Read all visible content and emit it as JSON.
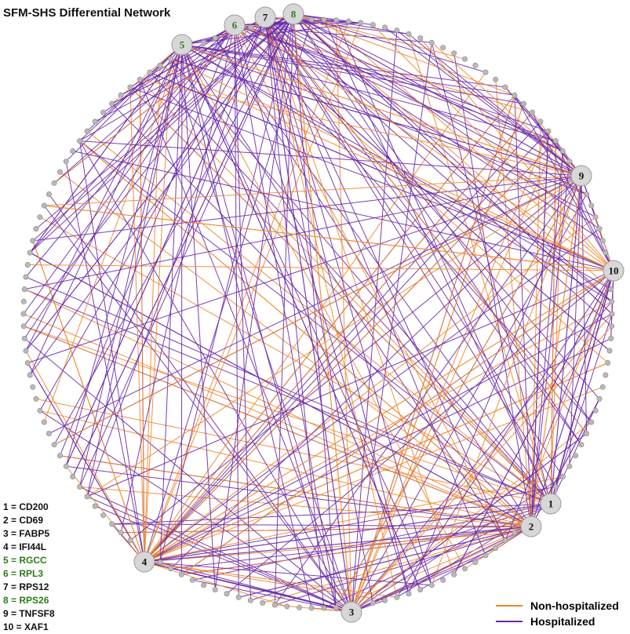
{
  "title": "SFM-SHS Differential Network",
  "colors": {
    "non_hospitalized": "#f0862a",
    "hospitalized": "#6a2aa8",
    "hub_fill": "#d7d7d7",
    "leaf_fill": "#b9b9b9",
    "key_black": "#111111",
    "key_green": "#2e7d1a"
  },
  "hubs": [
    {
      "id": "1",
      "label": "1",
      "gene": "CD200",
      "color": "black"
    },
    {
      "id": "2",
      "label": "2",
      "gene": "CD69",
      "color": "black"
    },
    {
      "id": "3",
      "label": "3",
      "gene": "FABP5",
      "color": "black"
    },
    {
      "id": "4",
      "label": "4",
      "gene": "IFI44L",
      "color": "black"
    },
    {
      "id": "5",
      "label": "5",
      "gene": "RGCC",
      "color": "green"
    },
    {
      "id": "6",
      "label": "6",
      "gene": "RPL3",
      "color": "green"
    },
    {
      "id": "7",
      "label": "7",
      "gene": "RPS12",
      "color": "black"
    },
    {
      "id": "8",
      "label": "8",
      "gene": "RPS26",
      "color": "green"
    },
    {
      "id": "9",
      "label": "9",
      "gene": "TNFSF8",
      "color": "black"
    },
    {
      "id": "10",
      "label": "10",
      "gene": "XAF1",
      "color": "black"
    }
  ],
  "gene_key": [
    {
      "text": "1 = CD200",
      "color": "black"
    },
    {
      "text": "2 = CD69",
      "color": "black"
    },
    {
      "text": "3 = FABP5",
      "color": "black"
    },
    {
      "text": "4 = IFI44L",
      "color": "black"
    },
    {
      "text": "5 = RGCC",
      "color": "green"
    },
    {
      "text": "6 = RPL3",
      "color": "green"
    },
    {
      "text": "7 = RPS12",
      "color": "black"
    },
    {
      "text": "8 = RPS26",
      "color": "green"
    },
    {
      "text": "9 = TNFSF8",
      "color": "black"
    },
    {
      "text": "10 = XAF1",
      "color": "black"
    }
  ],
  "legend": {
    "non_hospitalized": "Non-hospitalized",
    "hospitalized": "Hospitalized"
  }
}
